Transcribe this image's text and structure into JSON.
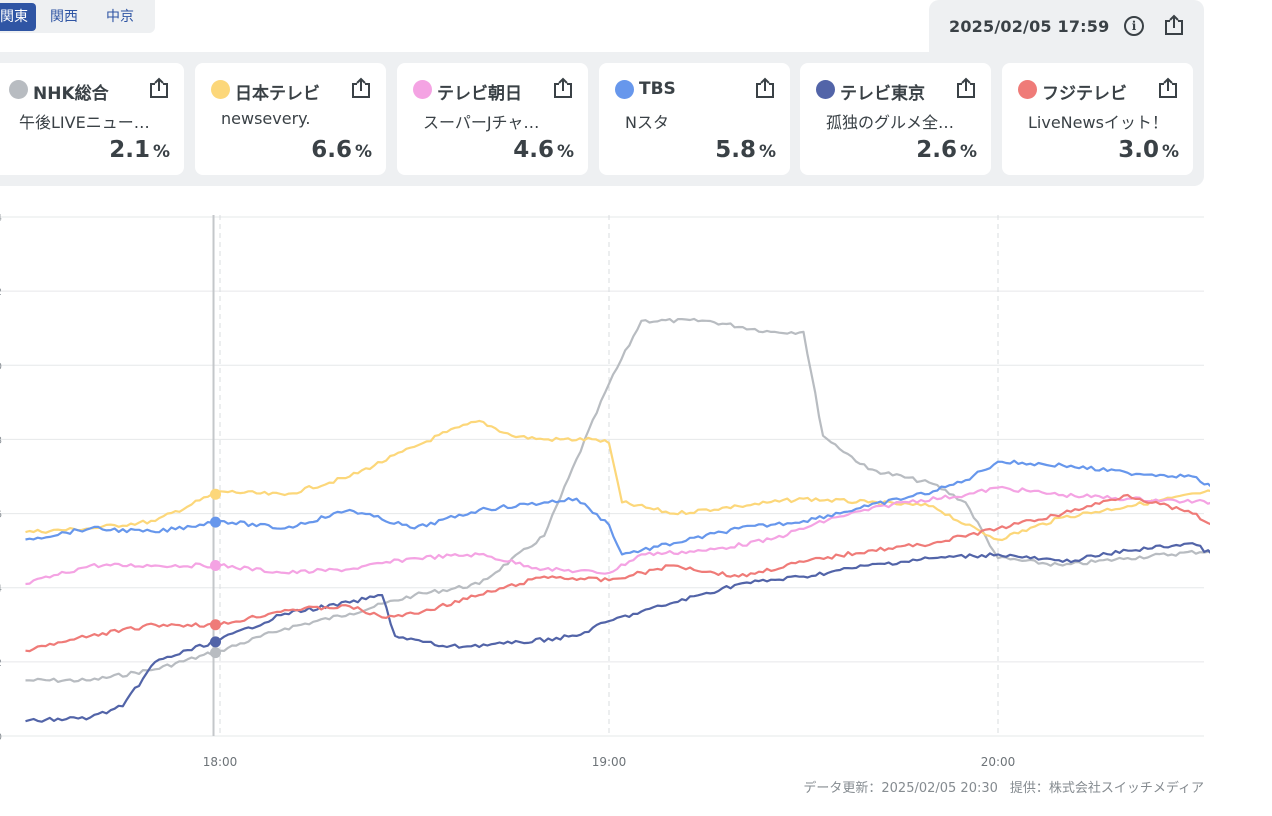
{
  "region_tabs": [
    {
      "label": "関東",
      "active": true
    },
    {
      "label": "関西",
      "active": false
    },
    {
      "label": "中京",
      "active": false
    }
  ],
  "header": {
    "timestamp": "2025/02/05 17:59",
    "info_icon": "info-icon",
    "share_icon": "share-icon"
  },
  "channels": [
    {
      "name": "NHK総合",
      "program": "午後LIVEニュー…",
      "rating": "2.1",
      "unit": "%",
      "color": "#b8bcc1"
    },
    {
      "name": "日本テレビ",
      "program": "newsevery.",
      "rating": "6.6",
      "unit": "%",
      "color": "#fcd77a"
    },
    {
      "name": "テレビ朝日",
      "program": "スーパーJチャ…",
      "rating": "4.6",
      "unit": "%",
      "color": "#f4a3e3"
    },
    {
      "name": "TBS",
      "program": "Nスタ",
      "rating": "5.8",
      "unit": "%",
      "color": "#6797ec"
    },
    {
      "name": "テレビ東京",
      "program": "孤独のグルメ全…",
      "rating": "2.6",
      "unit": "%",
      "color": "#5264a8"
    },
    {
      "name": "フジテレビ",
      "program": "LiveNewsイット！",
      "rating": "3.0",
      "unit": "%",
      "color": "#ef7b78"
    }
  ],
  "footer": {
    "updated": "データ更新：2025/02/05 20:30",
    "provider": "提供：株式会社スイッチメディア"
  },
  "chart_data": {
    "type": "line",
    "x_start": "17:30",
    "x_end": "20:33",
    "x_ticks": [
      "18:00",
      "19:00",
      "20:00"
    ],
    "y_ticks": [
      "0",
      "2",
      "4",
      "6",
      "8",
      "10",
      "12",
      "14"
    ],
    "ylim": [
      0,
      14
    ],
    "ylabel": "",
    "cursor_time": "17:59",
    "grid": true,
    "series": [
      {
        "name": "NHK総合",
        "color": "#b8bcc1",
        "points": [
          [
            "17:30",
            1.5
          ],
          [
            "17:40",
            1.5
          ],
          [
            "17:50",
            1.8
          ],
          [
            "18:00",
            2.3
          ],
          [
            "18:10",
            2.9
          ],
          [
            "18:20",
            3.3
          ],
          [
            "18:30",
            3.8
          ],
          [
            "18:40",
            4.1
          ],
          [
            "18:50",
            5.4
          ],
          [
            "19:00",
            9.5
          ],
          [
            "19:05",
            11.2
          ],
          [
            "19:15",
            11.2
          ],
          [
            "19:25",
            10.9
          ],
          [
            "19:30",
            10.9
          ],
          [
            "19:33",
            8.1
          ],
          [
            "19:40",
            7.2
          ],
          [
            "19:50",
            6.8
          ],
          [
            "19:55",
            6.3
          ],
          [
            "20:00",
            4.8
          ],
          [
            "20:10",
            4.6
          ],
          [
            "20:20",
            4.8
          ],
          [
            "20:33",
            5.0
          ]
        ]
      },
      {
        "name": "日本テレビ",
        "color": "#fcd77a",
        "points": [
          [
            "17:30",
            5.5
          ],
          [
            "17:40",
            5.6
          ],
          [
            "17:50",
            5.8
          ],
          [
            "18:00",
            6.6
          ],
          [
            "18:10",
            6.5
          ],
          [
            "18:20",
            7.0
          ],
          [
            "18:30",
            7.8
          ],
          [
            "18:35",
            8.2
          ],
          [
            "18:40",
            8.5
          ],
          [
            "18:45",
            8.1
          ],
          [
            "18:50",
            8.0
          ],
          [
            "18:58",
            8.0
          ],
          [
            "19:00",
            7.9
          ],
          [
            "19:02",
            6.3
          ],
          [
            "19:10",
            6.0
          ],
          [
            "19:20",
            6.2
          ],
          [
            "19:30",
            6.4
          ],
          [
            "19:40",
            6.3
          ],
          [
            "19:50",
            6.2
          ],
          [
            "19:55",
            5.7
          ],
          [
            "20:00",
            5.3
          ],
          [
            "20:10",
            5.9
          ],
          [
            "20:20",
            6.2
          ],
          [
            "20:33",
            6.6
          ]
        ]
      },
      {
        "name": "テレビ朝日",
        "color": "#f4a3e3",
        "points": [
          [
            "17:30",
            4.1
          ],
          [
            "17:40",
            4.6
          ],
          [
            "17:50",
            4.6
          ],
          [
            "18:00",
            4.6
          ],
          [
            "18:10",
            4.4
          ],
          [
            "18:20",
            4.5
          ],
          [
            "18:30",
            4.8
          ],
          [
            "18:40",
            4.9
          ],
          [
            "18:50",
            4.5
          ],
          [
            "19:00",
            4.4
          ],
          [
            "19:05",
            4.9
          ],
          [
            "19:15",
            5.0
          ],
          [
            "19:25",
            5.3
          ],
          [
            "19:35",
            5.9
          ],
          [
            "19:45",
            6.3
          ],
          [
            "19:55",
            6.5
          ],
          [
            "20:00",
            6.7
          ],
          [
            "20:10",
            6.5
          ],
          [
            "20:20",
            6.4
          ],
          [
            "20:33",
            6.3
          ]
        ]
      },
      {
        "name": "TBS",
        "color": "#6797ec",
        "points": [
          [
            "17:30",
            5.3
          ],
          [
            "17:40",
            5.6
          ],
          [
            "17:50",
            5.5
          ],
          [
            "18:00",
            5.8
          ],
          [
            "18:10",
            5.6
          ],
          [
            "18:20",
            6.1
          ],
          [
            "18:30",
            5.6
          ],
          [
            "18:40",
            6.1
          ],
          [
            "18:50",
            6.3
          ],
          [
            "18:55",
            6.4
          ],
          [
            "19:00",
            5.7
          ],
          [
            "19:02",
            4.9
          ],
          [
            "19:10",
            5.2
          ],
          [
            "19:20",
            5.6
          ],
          [
            "19:30",
            5.8
          ],
          [
            "19:40",
            6.2
          ],
          [
            "19:50",
            6.6
          ],
          [
            "19:55",
            6.9
          ],
          [
            "20:00",
            7.4
          ],
          [
            "20:10",
            7.3
          ],
          [
            "20:20",
            7.1
          ],
          [
            "20:30",
            7.0
          ],
          [
            "20:33",
            6.7
          ]
        ]
      },
      {
        "name": "テレビ東京",
        "color": "#5264a8",
        "points": [
          [
            "17:30",
            0.4
          ],
          [
            "17:40",
            0.5
          ],
          [
            "17:45",
            0.8
          ],
          [
            "17:50",
            2.0
          ],
          [
            "18:00",
            2.6
          ],
          [
            "18:10",
            3.3
          ],
          [
            "18:20",
            3.6
          ],
          [
            "18:25",
            3.8
          ],
          [
            "18:27",
            2.7
          ],
          [
            "18:35",
            2.4
          ],
          [
            "18:45",
            2.5
          ],
          [
            "18:55",
            2.7
          ],
          [
            "19:00",
            3.1
          ],
          [
            "19:10",
            3.6
          ],
          [
            "19:20",
            4.1
          ],
          [
            "19:30",
            4.3
          ],
          [
            "19:40",
            4.6
          ],
          [
            "19:50",
            4.8
          ],
          [
            "20:00",
            4.9
          ],
          [
            "20:10",
            4.7
          ],
          [
            "20:20",
            5.0
          ],
          [
            "20:30",
            5.2
          ],
          [
            "20:33",
            4.9
          ]
        ]
      },
      {
        "name": "フジテレビ",
        "color": "#ef7b78",
        "points": [
          [
            "17:30",
            2.3
          ],
          [
            "17:40",
            2.7
          ],
          [
            "17:50",
            3.0
          ],
          [
            "18:00",
            3.0
          ],
          [
            "18:10",
            3.4
          ],
          [
            "18:20",
            3.5
          ],
          [
            "18:25",
            3.2
          ],
          [
            "18:30",
            3.3
          ],
          [
            "18:40",
            3.8
          ],
          [
            "18:50",
            4.3
          ],
          [
            "19:00",
            4.2
          ],
          [
            "19:10",
            4.6
          ],
          [
            "19:20",
            4.3
          ],
          [
            "19:30",
            4.7
          ],
          [
            "19:40",
            5.0
          ],
          [
            "19:50",
            5.2
          ],
          [
            "20:00",
            5.6
          ],
          [
            "20:10",
            6.0
          ],
          [
            "20:20",
            6.5
          ],
          [
            "20:30",
            6.0
          ],
          [
            "20:33",
            5.7
          ]
        ]
      }
    ]
  }
}
